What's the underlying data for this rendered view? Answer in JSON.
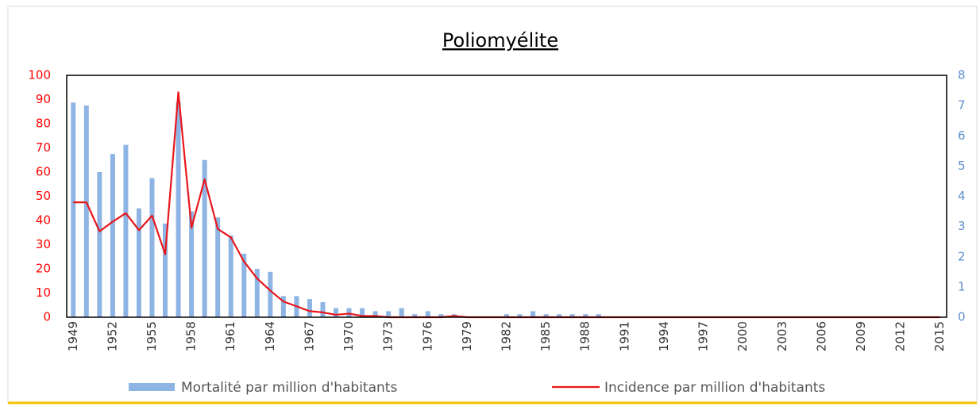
{
  "chart_data": {
    "type": "bar",
    "title": "Poliomyélite",
    "categories": [
      "1949",
      null,
      null,
      "1952",
      null,
      null,
      "1955",
      null,
      null,
      "1958",
      null,
      null,
      "1961",
      null,
      null,
      "1964",
      null,
      null,
      "1967",
      null,
      null,
      "1970",
      null,
      null,
      "1973",
      null,
      null,
      "1976",
      null,
      null,
      "1979",
      null,
      null,
      "1982",
      null,
      null,
      "1985",
      null,
      null,
      "1988",
      null,
      null,
      "1991",
      null,
      null,
      "1994",
      null,
      null,
      "1997",
      null,
      null,
      "2000",
      null,
      null,
      "2003",
      null,
      null,
      "2006",
      null,
      null,
      "2009",
      null,
      null,
      "2012",
      null,
      null,
      "2015"
    ],
    "series": [
      {
        "name": "Mortalité par million d'habitants",
        "type": "bar",
        "axis": "y2",
        "color": "#8eb4e3",
        "values": [
          7.1,
          7.0,
          4.8,
          5.4,
          5.7,
          3.6,
          4.6,
          3.1,
          7.1,
          3.5,
          5.2,
          3.3,
          2.7,
          2.1,
          1.6,
          1.5,
          0.7,
          0.7,
          0.6,
          0.5,
          0.3,
          0.3,
          0.3,
          0.2,
          0.2,
          0.3,
          0.1,
          0.2,
          0.1,
          0.1,
          0,
          0,
          0,
          0.1,
          0.1,
          0.2,
          0.1,
          0.1,
          0.1,
          0.1,
          0.1,
          0,
          0,
          0,
          0,
          0,
          0,
          0,
          0,
          0,
          0,
          0,
          0,
          0,
          0,
          0,
          0,
          0,
          0,
          0,
          0,
          0,
          0,
          0,
          0,
          0,
          0
        ]
      },
      {
        "name": "Incidence par million d'habitants",
        "type": "line",
        "axis": "y",
        "color": "#e8161c",
        "values": [
          47.5,
          47.5,
          35.5,
          39.5,
          43,
          36,
          42,
          26,
          93,
          37,
          57,
          36.5,
          33,
          23,
          16,
          11,
          6.5,
          4.5,
          2.5,
          2,
          1,
          1.5,
          0.5,
          0.5,
          0,
          0,
          0,
          0,
          0,
          0.5,
          0,
          0,
          0,
          0,
          0,
          0,
          0,
          0,
          0,
          0,
          0,
          0,
          0,
          0,
          0,
          0,
          0,
          0,
          0,
          0,
          0,
          0,
          0,
          0,
          0,
          0,
          0,
          0,
          0,
          0,
          0,
          0,
          0,
          0,
          0,
          0,
          0
        ]
      }
    ],
    "ylim": [
      0,
      100
    ],
    "yticks": [
      0,
      10,
      20,
      30,
      40,
      50,
      60,
      70,
      80,
      90,
      100
    ],
    "ycolor": "#ff0000",
    "y2lim": [
      0,
      8
    ],
    "y2ticks": [
      0,
      1,
      2,
      3,
      4,
      5,
      6,
      7,
      8
    ],
    "y2color": "#5b8fcc",
    "legend": "bottom"
  }
}
